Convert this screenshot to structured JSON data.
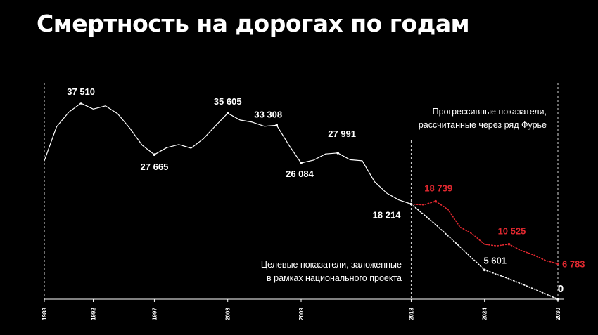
{
  "title": "Смертность на дорогах по годам",
  "chart_data": {
    "type": "line",
    "title": "Смертность на дорогах по годам",
    "x_ticks": [
      1988,
      1992,
      1997,
      2003,
      2009,
      2018,
      2024,
      2030
    ],
    "xlim": [
      1988,
      2030
    ],
    "ylim": [
      0,
      39000
    ],
    "grid": false,
    "colors": {
      "history": "#ffffff",
      "fourier": "#e0282f",
      "target": "#ffffff"
    },
    "series": [
      {
        "x": [
          1988,
          1989,
          1990,
          1991,
          1992,
          1993,
          1994,
          1995,
          1996,
          1997,
          1998,
          1999,
          2000,
          2001,
          2002,
          2003,
          2004,
          2005,
          2006,
          2007,
          2008,
          2009,
          2010,
          2011,
          2012,
          2013,
          2014,
          2015,
          2016,
          2017,
          2018
        ],
        "values": [
          26500,
          33000,
          35800,
          37510,
          36400,
          37000,
          35500,
          32700,
          29500,
          27665,
          29000,
          29600,
          28900,
          30700,
          33200,
          35605,
          34300,
          33900,
          33100,
          33308,
          29500,
          26084,
          26600,
          27800,
          27991,
          26700,
          26500,
          22500,
          20300,
          19000,
          18214
        ]
      },
      {
        "name": "Прогрессивные показатели, рассчитанные через ряд Фурье",
        "style": "dotted",
        "x": [
          2018,
          2019,
          2020,
          2021,
          2022,
          2023,
          2024,
          2025,
          2026,
          2027,
          2028,
          2029,
          2030
        ],
        "values": [
          18214,
          18050,
          18739,
          17200,
          13800,
          12500,
          10500,
          10200,
          10525,
          9300,
          8500,
          7400,
          6783
        ]
      },
      {
        "name": "Целевые показатели, заложенные в рамках национального проекта",
        "style": "dotted",
        "x": [
          2018,
          2020,
          2022,
          2024,
          2026,
          2028,
          2030
        ],
        "values": [
          18214,
          14300,
          10000,
          5601,
          3900,
          2000,
          0
        ]
      }
    ],
    "point_labels": [
      {
        "series": 0,
        "x": 1991,
        "text": "37 510"
      },
      {
        "series": 0,
        "x": 1997,
        "text": "27 665"
      },
      {
        "series": 0,
        "x": 2003,
        "text": "35 605"
      },
      {
        "series": 0,
        "x": 2007,
        "text": "33 308"
      },
      {
        "series": 0,
        "x": 2009,
        "text": "26 084"
      },
      {
        "series": 0,
        "x": 2012,
        "text": "27 991"
      },
      {
        "series": 0,
        "x": 2018,
        "text": "18 214"
      },
      {
        "series": 1,
        "x": 2020,
        "text": "18 739"
      },
      {
        "series": 1,
        "x": 2026,
        "text": "10 525"
      },
      {
        "series": 1,
        "x": 2030,
        "text": "6 783"
      },
      {
        "series": 2,
        "x": 2024,
        "text": "5 601"
      },
      {
        "series": 2,
        "x": 2030,
        "text": "0"
      }
    ],
    "annotations": [
      {
        "lines": [
          "Прогрессивные показатели,",
          "рассчитанные через ряд Фурье"
        ]
      },
      {
        "lines": [
          "Целевые показатели, заложенные",
          "в рамках национального проекта"
        ]
      }
    ]
  }
}
